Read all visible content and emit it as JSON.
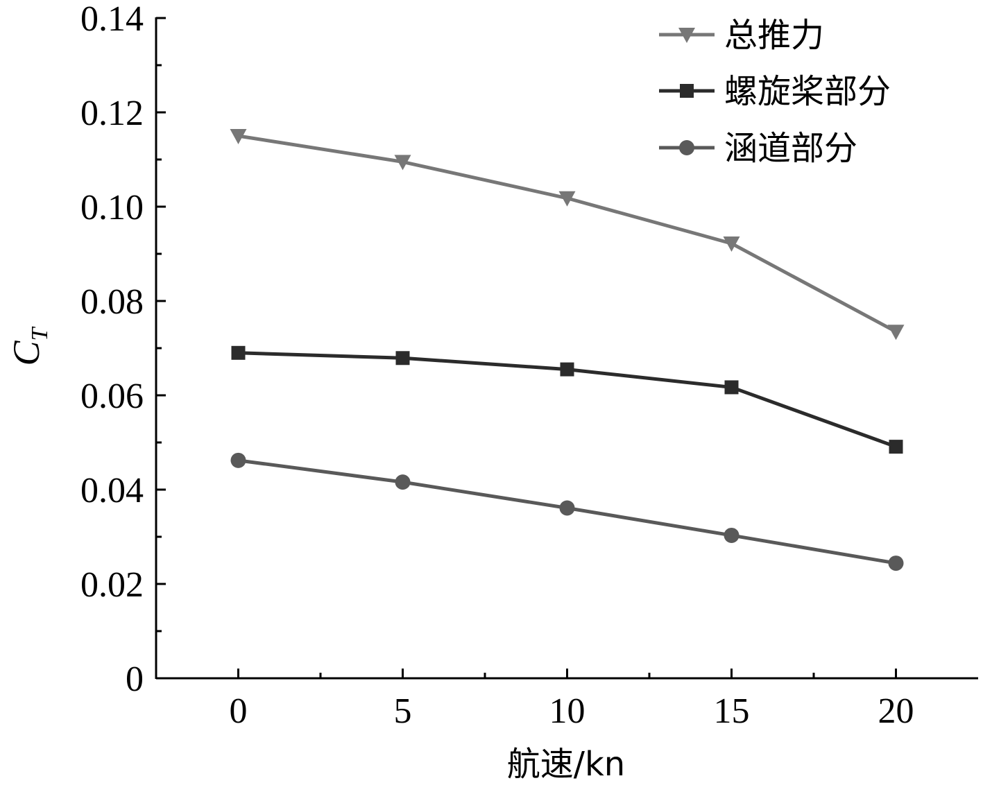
{
  "chart_data": {
    "type": "line",
    "xlabel": "航速/kn",
    "ylabel": "C",
    "ylabel_subscript": "T",
    "x": [
      0,
      5,
      10,
      15,
      20
    ],
    "xlim": [
      -2.5,
      22.5
    ],
    "ylim": [
      0,
      0.14
    ],
    "xticks": [
      0,
      5,
      10,
      15,
      20
    ],
    "xtick_labels": [
      "0",
      "5",
      "10",
      "15",
      "20"
    ],
    "yticks": [
      0,
      0.02,
      0.04,
      0.06,
      0.08,
      0.1,
      0.12,
      0.14
    ],
    "ytick_labels": [
      "0",
      "0.02",
      "0.04",
      "0.06",
      "0.08",
      "0.10",
      "0.12",
      "0.14"
    ],
    "grid": false,
    "legend_position": "top-right",
    "series": [
      {
        "name": "总推力",
        "marker": "triangle-down",
        "color": "#777777",
        "values": [
          0.115,
          0.1095,
          0.1018,
          0.0922,
          0.0735
        ]
      },
      {
        "name": "螺旋桨部分",
        "marker": "square",
        "color": "#2b2b2b",
        "values": [
          0.069,
          0.0679,
          0.0655,
          0.0617,
          0.0491
        ]
      },
      {
        "name": "涵道部分",
        "marker": "circle",
        "color": "#595959",
        "values": [
          0.0462,
          0.0416,
          0.0361,
          0.0303,
          0.0244
        ]
      }
    ]
  }
}
